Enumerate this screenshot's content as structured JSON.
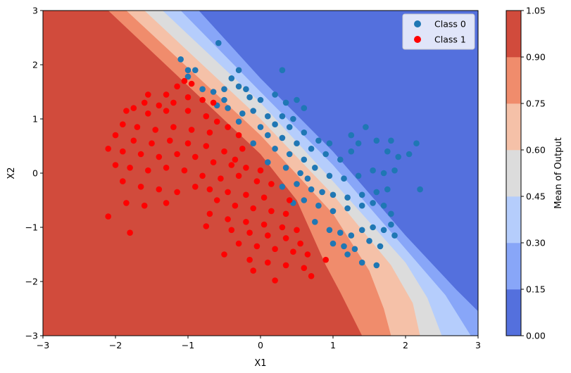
{
  "chart_data": {
    "type": "scatter",
    "title": "",
    "xlabel": "X1",
    "ylabel": "X2",
    "xlim": [
      -3,
      3
    ],
    "ylim": [
      -3,
      3
    ],
    "xticks": [
      "−3",
      "−2",
      "−1",
      "0",
      "1",
      "2",
      "3"
    ],
    "yticks": [
      "−3",
      "−2",
      "−1",
      "0",
      "1",
      "2",
      "3"
    ],
    "grid": false,
    "legend_placement": "top-right",
    "background": {
      "kind": "filled-contour",
      "description_levels": [
        0.0,
        0.15,
        0.3,
        0.45,
        0.6,
        0.75,
        0.9,
        1.05
      ],
      "colors": [
        "#5470dd",
        "#88a6f8",
        "#b5cdfc",
        "#dcdcdc",
        "#f5c1a8",
        "#f08c6c",
        "#d14b3c"
      ],
      "boundary_lines": [
        {
          "level": 0.15,
          "points": [
            [
              -0.85,
              3
            ],
            [
              0,
              1.75
            ],
            [
              1,
              0.4
            ],
            [
              2,
              -1.15
            ],
            [
              2.7,
              -2.15
            ],
            [
              3,
              -2.55
            ]
          ]
        },
        {
          "level": 0.3,
          "points": [
            [
              -1.1,
              3
            ],
            [
              0,
              1.5
            ],
            [
              1,
              0.15
            ],
            [
              2,
              -1.4
            ],
            [
              2.55,
              -2.25
            ],
            [
              2.9,
              -3
            ]
          ]
        },
        {
          "level": 0.45,
          "points": [
            [
              -1.35,
              3
            ],
            [
              0,
              1.3
            ],
            [
              1,
              -0.15
            ],
            [
              2,
              -1.65
            ],
            [
              2.3,
              -2.3
            ],
            [
              2.5,
              -3
            ]
          ]
        },
        {
          "level": 0.6,
          "points": [
            [
              -1.6,
              3
            ],
            [
              0,
              1.0
            ],
            [
              1,
              -0.4
            ],
            [
              1.8,
              -1.7
            ],
            [
              2.1,
              -2.4
            ],
            [
              2.2,
              -3
            ]
          ]
        },
        {
          "level": 0.75,
          "points": [
            [
              -1.85,
              3
            ],
            [
              0,
              0.7
            ],
            [
              1,
              -0.75
            ],
            [
              1.5,
              -1.8
            ],
            [
              1.7,
              -2.5
            ],
            [
              1.8,
              -3
            ]
          ]
        },
        {
          "level": 0.9,
          "points": [
            [
              -2.1,
              3
            ],
            [
              0,
              0.35
            ],
            [
              0.5,
              -0.5
            ],
            [
              0.9,
              -1.7
            ],
            [
              1.1,
              -2.2
            ],
            [
              1.4,
              -3
            ]
          ]
        }
      ]
    },
    "colorbar": {
      "label": "Mean of Output",
      "ticks": [
        "0.00",
        "0.15",
        "0.30",
        "0.45",
        "0.60",
        "0.75",
        "0.90",
        "1.05"
      ],
      "min": 0.0,
      "max": 1.05
    },
    "series": [
      {
        "name": "Class 0",
        "color": "#1f77b4",
        "points": [
          [
            -1.1,
            2.1
          ],
          [
            -1.0,
            1.9
          ],
          [
            -1.0,
            1.78
          ],
          [
            -0.9,
            1.9
          ],
          [
            -0.58,
            2.4
          ],
          [
            -0.3,
            1.9
          ],
          [
            0.3,
            1.9
          ],
          [
            -0.8,
            1.55
          ],
          [
            -0.65,
            1.5
          ],
          [
            -0.5,
            1.55
          ],
          [
            -0.4,
            1.75
          ],
          [
            -0.3,
            1.6
          ],
          [
            -0.2,
            1.55
          ],
          [
            -0.15,
            1.4
          ],
          [
            0.0,
            1.35
          ],
          [
            0.2,
            1.45
          ],
          [
            0.35,
            1.3
          ],
          [
            0.5,
            1.35
          ],
          [
            0.6,
            1.2
          ],
          [
            -0.6,
            1.25
          ],
          [
            -0.5,
            1.35
          ],
          [
            -0.45,
            1.2
          ],
          [
            -0.25,
            1.1
          ],
          [
            -0.1,
            1.15
          ],
          [
            0.1,
            1.05
          ],
          [
            0.3,
            1.05
          ],
          [
            0.45,
            1.0
          ],
          [
            -0.3,
            0.95
          ],
          [
            0.0,
            0.85
          ],
          [
            0.2,
            0.9
          ],
          [
            0.4,
            0.85
          ],
          [
            0.6,
            0.75
          ],
          [
            0.8,
            0.6
          ],
          [
            0.95,
            0.55
          ],
          [
            0.1,
            0.7
          ],
          [
            0.3,
            0.65
          ],
          [
            0.5,
            0.55
          ],
          [
            0.7,
            0.45
          ],
          [
            -0.1,
            0.55
          ],
          [
            0.2,
            0.45
          ],
          [
            0.4,
            0.35
          ],
          [
            0.6,
            0.25
          ],
          [
            0.9,
            0.35
          ],
          [
            1.1,
            0.25
          ],
          [
            1.25,
            0.4
          ],
          [
            1.35,
            0.55
          ],
          [
            1.45,
            0.85
          ],
          [
            1.25,
            0.7
          ],
          [
            0.1,
            0.2
          ],
          [
            0.35,
            0.1
          ],
          [
            0.55,
            0.0
          ],
          [
            0.75,
            0.1
          ],
          [
            0.95,
            -0.05
          ],
          [
            1.15,
            -0.1
          ],
          [
            1.35,
            -0.05
          ],
          [
            1.55,
            0.05
          ],
          [
            1.7,
            0.0
          ],
          [
            1.85,
            0.05
          ],
          [
            1.9,
            0.3
          ],
          [
            1.75,
            0.4
          ],
          [
            1.6,
            0.6
          ],
          [
            1.8,
            0.6
          ],
          [
            2.05,
            0.35
          ],
          [
            2.15,
            0.55
          ],
          [
            2.2,
            -0.3
          ],
          [
            0.3,
            -0.25
          ],
          [
            0.5,
            -0.2
          ],
          [
            0.7,
            -0.3
          ],
          [
            0.85,
            -0.35
          ],
          [
            1.0,
            -0.4
          ],
          [
            1.2,
            -0.45
          ],
          [
            1.4,
            -0.4
          ],
          [
            1.6,
            -0.35
          ],
          [
            1.75,
            -0.3
          ],
          [
            0.6,
            -0.5
          ],
          [
            0.8,
            -0.6
          ],
          [
            1.0,
            -0.7
          ],
          [
            1.2,
            -0.65
          ],
          [
            1.4,
            -0.6
          ],
          [
            1.55,
            -0.55
          ],
          [
            1.7,
            -0.6
          ],
          [
            1.8,
            -0.75
          ],
          [
            0.75,
            -0.9
          ],
          [
            0.95,
            -1.05
          ],
          [
            1.1,
            -1.1
          ],
          [
            1.25,
            -1.15
          ],
          [
            1.4,
            -1.05
          ],
          [
            1.55,
            -1.0
          ],
          [
            1.7,
            -1.05
          ],
          [
            1.85,
            -1.15
          ],
          [
            1.0,
            -1.3
          ],
          [
            1.15,
            -1.35
          ],
          [
            1.3,
            -1.4
          ],
          [
            1.5,
            -1.25
          ],
          [
            1.65,
            -1.35
          ],
          [
            1.2,
            -1.5
          ],
          [
            1.4,
            -1.65
          ],
          [
            1.6,
            -1.7
          ],
          [
            1.8,
            -0.95
          ],
          [
            0.45,
            -0.55
          ],
          [
            0.65,
            -0.1
          ]
        ]
      },
      {
        "name": "Class 1",
        "color": "#ff0000",
        "points": [
          [
            -1.55,
            1.45
          ],
          [
            -1.05,
            1.7
          ],
          [
            -0.95,
            1.65
          ],
          [
            -1.15,
            1.6
          ],
          [
            -1.3,
            1.45
          ],
          [
            -1.0,
            1.4
          ],
          [
            -0.8,
            1.35
          ],
          [
            -0.65,
            1.3
          ],
          [
            -1.2,
            1.3
          ],
          [
            -1.4,
            1.25
          ],
          [
            -1.6,
            1.3
          ],
          [
            -1.75,
            1.2
          ],
          [
            -1.85,
            1.15
          ],
          [
            -1.55,
            1.1
          ],
          [
            -1.3,
            1.15
          ],
          [
            -1.0,
            1.15
          ],
          [
            -0.75,
            1.05
          ],
          [
            -0.6,
            0.95
          ],
          [
            -0.45,
            0.85
          ],
          [
            -0.3,
            0.7
          ],
          [
            -1.9,
            0.9
          ],
          [
            -1.7,
            0.85
          ],
          [
            -1.45,
            0.8
          ],
          [
            -1.2,
            0.85
          ],
          [
            -0.95,
            0.8
          ],
          [
            -0.7,
            0.75
          ],
          [
            -2.0,
            0.7
          ],
          [
            -1.75,
            0.6
          ],
          [
            -1.5,
            0.55
          ],
          [
            -1.25,
            0.6
          ],
          [
            -1.0,
            0.55
          ],
          [
            -0.75,
            0.5
          ],
          [
            -0.5,
            0.4
          ],
          [
            -0.25,
            0.45
          ],
          [
            -2.1,
            0.45
          ],
          [
            -1.9,
            0.4
          ],
          [
            -1.65,
            0.35
          ],
          [
            -1.4,
            0.3
          ],
          [
            -1.15,
            0.35
          ],
          [
            -0.9,
            0.3
          ],
          [
            -0.65,
            0.2
          ],
          [
            -0.4,
            0.15
          ],
          [
            -0.2,
            0.1
          ],
          [
            0.0,
            0.05
          ],
          [
            -2.0,
            0.15
          ],
          [
            -1.8,
            0.1
          ],
          [
            -1.55,
            0.05
          ],
          [
            -1.3,
            0.1
          ],
          [
            -1.05,
            0.05
          ],
          [
            -0.8,
            -0.05
          ],
          [
            -0.55,
            -0.1
          ],
          [
            -0.3,
            -0.05
          ],
          [
            -0.05,
            -0.15
          ],
          [
            0.15,
            -0.2
          ],
          [
            -1.9,
            -0.15
          ],
          [
            -1.65,
            -0.25
          ],
          [
            -1.4,
            -0.3
          ],
          [
            -1.15,
            -0.35
          ],
          [
            -0.9,
            -0.25
          ],
          [
            -0.7,
            -0.3
          ],
          [
            -0.45,
            -0.35
          ],
          [
            -0.2,
            -0.4
          ],
          [
            0.05,
            -0.45
          ],
          [
            -1.85,
            -0.55
          ],
          [
            -1.6,
            -0.6
          ],
          [
            -1.3,
            -0.55
          ],
          [
            -0.6,
            -0.5
          ],
          [
            -0.35,
            -0.6
          ],
          [
            -0.1,
            -0.65
          ],
          [
            0.15,
            -0.7
          ],
          [
            0.35,
            -0.75
          ],
          [
            -2.1,
            -0.8
          ],
          [
            -0.7,
            -0.75
          ],
          [
            -0.45,
            -0.85
          ],
          [
            -0.2,
            -0.9
          ],
          [
            0.05,
            -0.95
          ],
          [
            0.3,
            -1.0
          ],
          [
            0.5,
            -1.05
          ],
          [
            -0.75,
            -0.98
          ],
          [
            -0.4,
            -1.05
          ],
          [
            -0.15,
            -1.1
          ],
          [
            0.1,
            -1.15
          ],
          [
            0.35,
            -1.2
          ],
          [
            0.55,
            -1.3
          ],
          [
            -1.8,
            -1.1
          ],
          [
            -0.3,
            -1.3
          ],
          [
            -0.05,
            -1.35
          ],
          [
            0.2,
            -1.4
          ],
          [
            0.45,
            -1.45
          ],
          [
            0.65,
            -1.5
          ],
          [
            -0.5,
            -1.5
          ],
          [
            -0.15,
            -1.6
          ],
          [
            0.1,
            -1.65
          ],
          [
            0.35,
            -1.7
          ],
          [
            0.6,
            -1.75
          ],
          [
            -0.1,
            -1.8
          ],
          [
            0.2,
            -1.98
          ],
          [
            0.7,
            -1.9
          ],
          [
            0.9,
            -1.6
          ],
          [
            0.4,
            -0.5
          ],
          [
            -0.35,
            0.25
          ]
        ]
      }
    ],
    "legend": [
      {
        "label": "Class 0",
        "color": "#1f77b4"
      },
      {
        "label": "Class 1",
        "color": "#ff0000"
      }
    ]
  }
}
